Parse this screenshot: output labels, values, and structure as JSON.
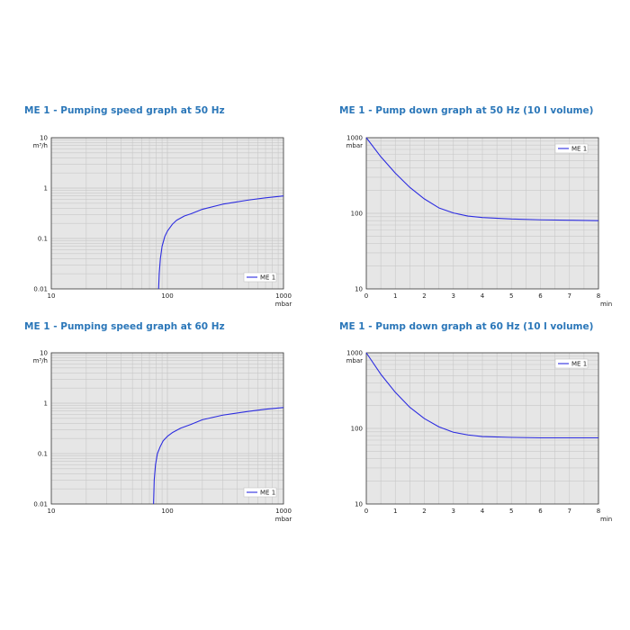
{
  "colors": {
    "title": "#2b77b9",
    "series": "#2c2ce0",
    "plot_bg": "#e6e6e6",
    "grid": "#c8c8c8"
  },
  "chart_data": [
    {
      "type": "line",
      "title": "ME 1 - Pumping speed graph at 50 Hz",
      "xscale": "log",
      "yscale": "log",
      "xlim": [
        10,
        1000
      ],
      "ylim": [
        0.01,
        10
      ],
      "xticks": [
        "10",
        "100",
        "1000"
      ],
      "yticks": [
        "0.01",
        "0.1",
        "1",
        "10"
      ],
      "xunit": "mbar",
      "yunit": "m³/h",
      "legend_position": "bottom-right",
      "grid": true,
      "series": [
        {
          "name": "ME 1",
          "x": [
            84,
            85,
            87,
            90,
            95,
            100,
            110,
            120,
            140,
            160,
            200,
            300,
            500,
            700,
            1000
          ],
          "y": [
            0.01,
            0.02,
            0.04,
            0.07,
            0.11,
            0.14,
            0.19,
            0.23,
            0.28,
            0.31,
            0.38,
            0.48,
            0.58,
            0.64,
            0.7
          ]
        }
      ]
    },
    {
      "type": "line",
      "title": "ME 1 - Pump down graph at 50 Hz (10 l volume)",
      "xscale": "linear",
      "yscale": "log",
      "xlim": [
        0,
        8
      ],
      "ylim": [
        10,
        1000
      ],
      "xticks": [
        "0",
        "1",
        "2",
        "3",
        "4",
        "5",
        "6",
        "7",
        "8"
      ],
      "yticks": [
        "10",
        "100",
        "1000"
      ],
      "xunit": "min",
      "yunit": "mbar",
      "legend_position": "top-right",
      "grid": true,
      "series": [
        {
          "name": "ME 1",
          "x": [
            0,
            0.5,
            1,
            1.5,
            2,
            2.5,
            3,
            3.5,
            4,
            5,
            6,
            7,
            8
          ],
          "y": [
            1000,
            560,
            340,
            220,
            155,
            118,
            101,
            92,
            88,
            84,
            82,
            81,
            80
          ]
        }
      ]
    },
    {
      "type": "line",
      "title": "ME 1 - Pumping speed graph at 60 Hz",
      "xscale": "log",
      "yscale": "log",
      "xlim": [
        10,
        1000
      ],
      "ylim": [
        0.01,
        10
      ],
      "xticks": [
        "10",
        "100",
        "1000"
      ],
      "yticks": [
        "0.01",
        "0.1",
        "1",
        "10"
      ],
      "xunit": "mbar",
      "yunit": "m³/h",
      "legend_position": "bottom-right",
      "grid": true,
      "series": [
        {
          "name": "ME 1",
          "x": [
            76,
            77,
            79,
            82,
            87,
            92,
            100,
            110,
            130,
            160,
            200,
            300,
            500,
            700,
            1000
          ],
          "y": [
            0.01,
            0.03,
            0.06,
            0.1,
            0.14,
            0.18,
            0.22,
            0.26,
            0.32,
            0.38,
            0.47,
            0.58,
            0.69,
            0.76,
            0.82
          ]
        }
      ]
    },
    {
      "type": "line",
      "title": "ME 1 - Pump down graph at 60 Hz (10 l volume)",
      "xscale": "linear",
      "yscale": "log",
      "xlim": [
        0,
        8
      ],
      "ylim": [
        10,
        1000
      ],
      "xticks": [
        "0",
        "1",
        "2",
        "3",
        "4",
        "5",
        "6",
        "7",
        "8"
      ],
      "yticks": [
        "10",
        "100",
        "1000"
      ],
      "xunit": "min",
      "yunit": "mbar",
      "legend_position": "top-right",
      "grid": true,
      "series": [
        {
          "name": "ME 1",
          "x": [
            0,
            0.5,
            1,
            1.5,
            2,
            2.5,
            3,
            3.5,
            4,
            5,
            6,
            7,
            8
          ],
          "y": [
            1000,
            520,
            300,
            190,
            135,
            105,
            89,
            82,
            78,
            76,
            75,
            75,
            75
          ]
        }
      ]
    }
  ]
}
